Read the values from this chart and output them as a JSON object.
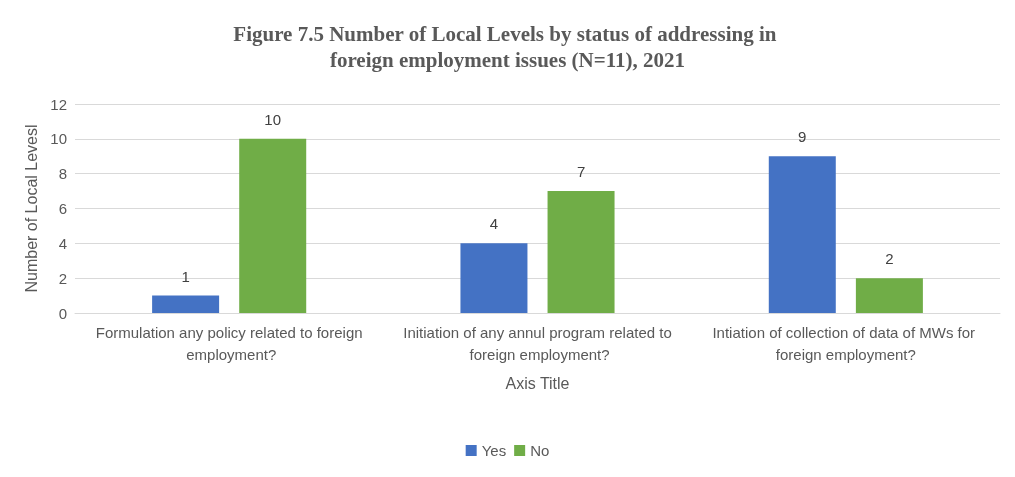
{
  "chart_data": {
    "type": "bar",
    "title": "Figure 7.5 Number of Local Levels by status of addressing in foreign employment issues (N=11), 2021",
    "categories": [
      "Formulation any policy related to foreign employment?",
      "Initiation of any annul program related to foreign employment?",
      "Intiation of collection of data of MWs for foreign employment?"
    ],
    "series": [
      {
        "name": "Yes",
        "color": "#4472c4",
        "values": [
          1,
          4,
          9
        ]
      },
      {
        "name": "No",
        "color": "#70ad47",
        "values": [
          10,
          7,
          2
        ]
      }
    ],
    "xlabel": "Axis Title",
    "ylabel": "Number of Local Levesl",
    "ylim": [
      0,
      12
    ],
    "yticks": [
      0,
      2,
      4,
      6,
      8,
      10,
      12
    ],
    "grid": "y",
    "legend": "bottom",
    "data_labels": true
  }
}
